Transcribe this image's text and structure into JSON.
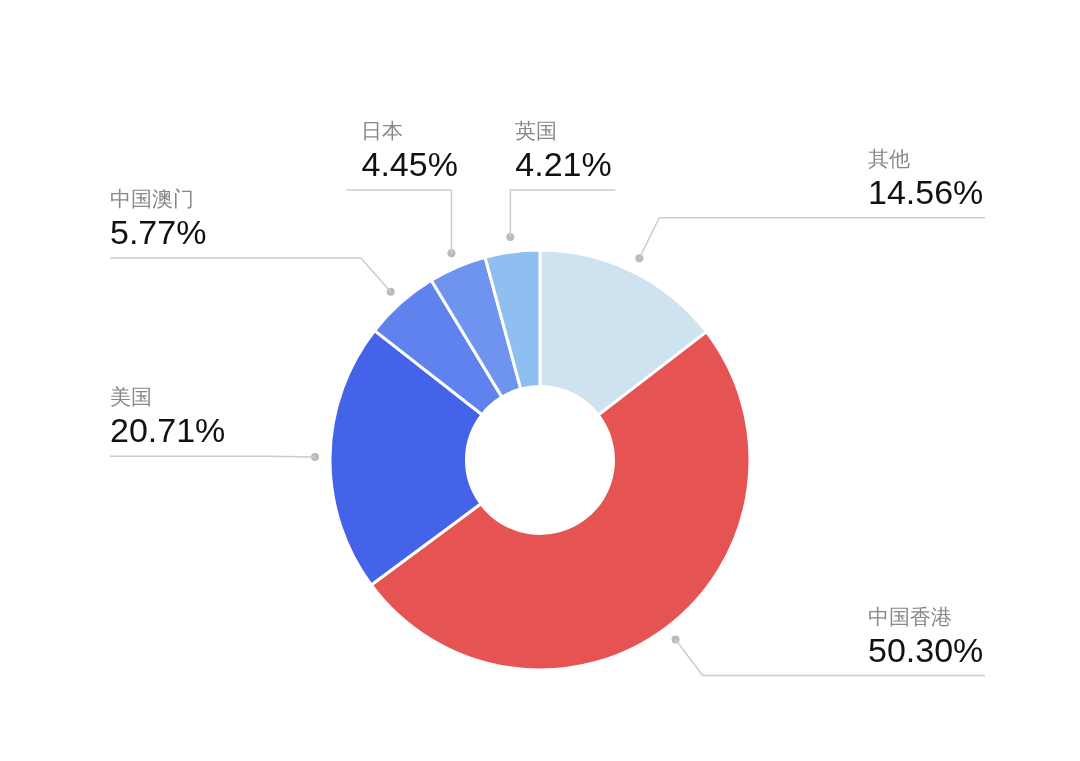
{
  "chart_data": {
    "type": "donut",
    "categories": [
      "其他",
      "中国香港",
      "美国",
      "中国澳门",
      "日本",
      "英国"
    ],
    "values": [
      14.56,
      50.3,
      20.71,
      5.77,
      4.45,
      4.21
    ],
    "value_labels": [
      "14.56%",
      "50.30%",
      "20.71%",
      "5.77%",
      "4.45%",
      "4.21%"
    ],
    "colors": [
      "#cfe2f0",
      "#e55353",
      "#4563e8",
      "#5f82ee",
      "#6f94f0",
      "#8fbff0"
    ]
  }
}
